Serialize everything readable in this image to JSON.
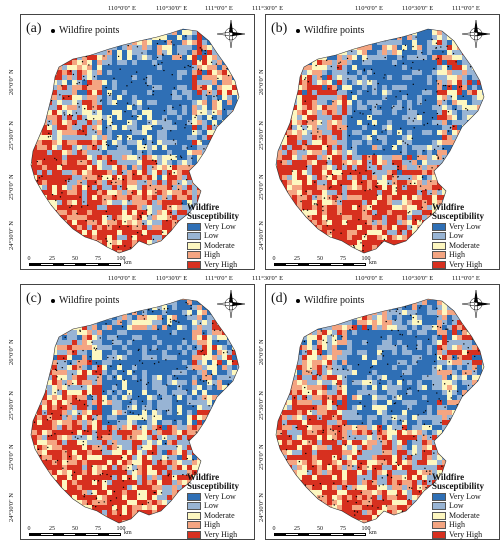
{
  "top_coords": [
    "110°0'0\" E",
    "110°30'0\" E",
    "111°0'0\" E",
    "111°30'0\" E"
  ],
  "lat_coords": [
    "26°0'0\" N",
    "25°30'0\" N",
    "25°0'0\" N",
    "24°30'0\" N"
  ],
  "points_label": "Wildfire points",
  "legend": {
    "title_line1": "Wildfire",
    "title_line2": "Susceptibility",
    "classes": [
      {
        "label": "Very Low",
        "color": "#2f6fb5"
      },
      {
        "label": "Low",
        "color": "#98b4d4"
      },
      {
        "label": "Moderate",
        "color": "#fdf7c0"
      },
      {
        "label": "High",
        "color": "#f4a582"
      },
      {
        "label": "Very High",
        "color": "#d7301f"
      }
    ]
  },
  "scale": {
    "ticks": [
      "0",
      "25",
      "50",
      "75",
      "100"
    ],
    "unit": "km"
  },
  "panels": [
    {
      "letter": "(a)"
    },
    {
      "letter": "(b)"
    },
    {
      "letter": "(c)"
    },
    {
      "letter": "(d)"
    }
  ]
}
